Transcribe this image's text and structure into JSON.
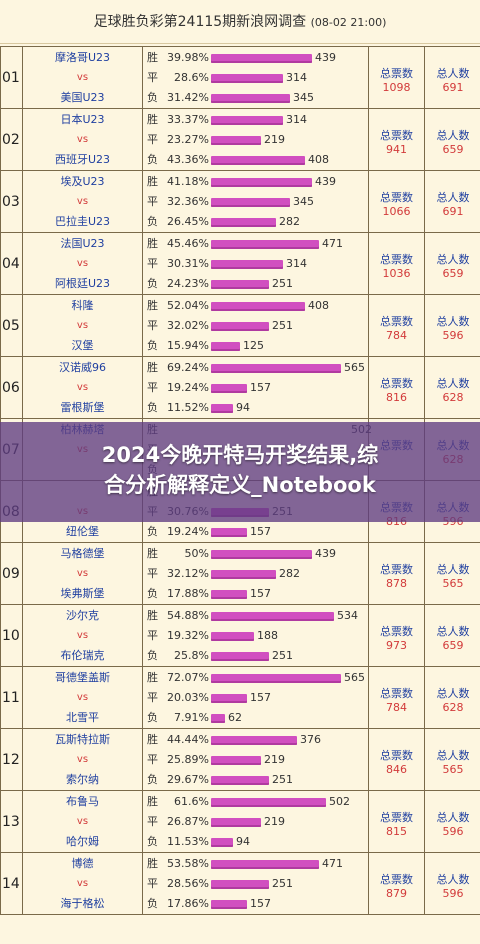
{
  "header": {
    "title": "足球胜负彩第24115期新浪网调查",
    "date": "(08-02 21:00)"
  },
  "labels": {
    "vs": "vs",
    "win": "胜",
    "draw": "平",
    "lose": "负",
    "total_votes": "总票数",
    "total_people": "总人数"
  },
  "overlay": {
    "line1": "2024今晚开特马开奖结果,综",
    "line2": "合分析解释定义_Notebook"
  },
  "matches": [
    {
      "num": "01",
      "home": "摩洛哥U23",
      "away": "美国U23",
      "win_pct": "39.98%",
      "win_cnt": "439",
      "draw_pct": "28.6%",
      "draw_cnt": "314",
      "lose_pct": "31.42%",
      "lose_cnt": "345",
      "votes": "1098",
      "people": "691"
    },
    {
      "num": "02",
      "home": "日本U23",
      "away": "西班牙U23",
      "win_pct": "33.37%",
      "win_cnt": "314",
      "draw_pct": "23.27%",
      "draw_cnt": "219",
      "lose_pct": "43.36%",
      "lose_cnt": "408",
      "votes": "941",
      "people": "659"
    },
    {
      "num": "03",
      "home": "埃及U23",
      "away": "巴拉圭U23",
      "win_pct": "41.18%",
      "win_cnt": "439",
      "draw_pct": "32.36%",
      "draw_cnt": "345",
      "lose_pct": "26.45%",
      "lose_cnt": "282",
      "votes": "1066",
      "people": "691"
    },
    {
      "num": "04",
      "home": "法国U23",
      "away": "阿根廷U23",
      "win_pct": "45.46%",
      "win_cnt": "471",
      "draw_pct": "30.31%",
      "draw_cnt": "314",
      "lose_pct": "24.23%",
      "lose_cnt": "251",
      "votes": "1036",
      "people": "659"
    },
    {
      "num": "05",
      "home": "科隆",
      "away": "汉堡",
      "win_pct": "52.04%",
      "win_cnt": "408",
      "draw_pct": "32.02%",
      "draw_cnt": "251",
      "lose_pct": "15.94%",
      "lose_cnt": "125",
      "votes": "784",
      "people": "596"
    },
    {
      "num": "06",
      "home": "汉诺威96",
      "away": "雷根斯堡",
      "win_pct": "69.24%",
      "win_cnt": "565",
      "draw_pct": "19.24%",
      "draw_cnt": "157",
      "lose_pct": "11.52%",
      "lose_cnt": "94",
      "votes": "816",
      "people": "628"
    },
    {
      "num": "07",
      "home": "柏林赫塔",
      "away": "",
      "win_pct": "",
      "win_cnt": "502",
      "draw_pct": "",
      "draw_cnt": "",
      "lose_pct": "",
      "lose_cnt": "",
      "votes": "",
      "people": "628"
    },
    {
      "num": "08",
      "home": "",
      "away": "纽伦堡",
      "win_pct": "",
      "win_cnt": "",
      "draw_pct": "30.76%",
      "draw_cnt": "251",
      "lose_pct": "19.24%",
      "lose_cnt": "157",
      "votes": "816",
      "people": "596"
    },
    {
      "num": "09",
      "home": "马格德堡",
      "away": "埃弗斯堡",
      "win_pct": "50%",
      "win_cnt": "439",
      "draw_pct": "32.12%",
      "draw_cnt": "282",
      "lose_pct": "17.88%",
      "lose_cnt": "157",
      "votes": "878",
      "people": "565"
    },
    {
      "num": "10",
      "home": "沙尔克",
      "away": "布伦瑞克",
      "win_pct": "54.88%",
      "win_cnt": "534",
      "draw_pct": "19.32%",
      "draw_cnt": "188",
      "lose_pct": "25.8%",
      "lose_cnt": "251",
      "votes": "973",
      "people": "659"
    },
    {
      "num": "11",
      "home": "哥德堡盖斯",
      "away": "北雪平",
      "win_pct": "72.07%",
      "win_cnt": "565",
      "draw_pct": "20.03%",
      "draw_cnt": "157",
      "lose_pct": "7.91%",
      "lose_cnt": "62",
      "votes": "784",
      "people": "628"
    },
    {
      "num": "12",
      "home": "瓦斯特拉斯",
      "away": "索尔纳",
      "win_pct": "44.44%",
      "win_cnt": "376",
      "draw_pct": "25.89%",
      "draw_cnt": "219",
      "lose_pct": "29.67%",
      "lose_cnt": "251",
      "votes": "846",
      "people": "565"
    },
    {
      "num": "13",
      "home": "布鲁马",
      "away": "哈尔姆",
      "win_pct": "61.6%",
      "win_cnt": "502",
      "draw_pct": "26.87%",
      "draw_cnt": "219",
      "lose_pct": "11.53%",
      "lose_cnt": "94",
      "votes": "815",
      "people": "596"
    },
    {
      "num": "14",
      "home": "博德",
      "away": "海于格松",
      "win_pct": "53.58%",
      "win_cnt": "471",
      "draw_pct": "28.56%",
      "draw_cnt": "251",
      "lose_pct": "17.86%",
      "lose_cnt": "157",
      "votes": "879",
      "people": "596"
    }
  ]
}
